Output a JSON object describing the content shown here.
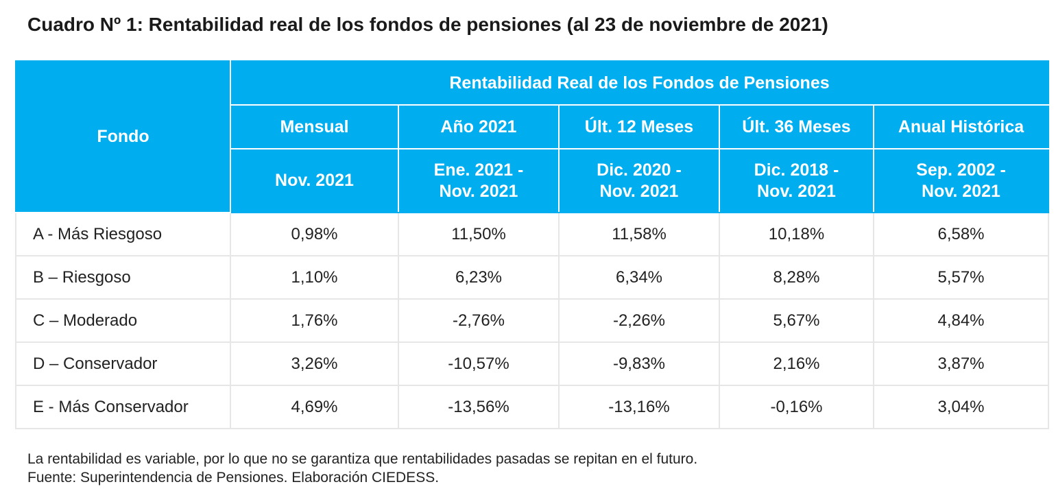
{
  "title": "Cuadro Nº 1: Rentabilidad real de los fondos de pensiones (al 23 de noviembre de 2021)",
  "chart_data": {
    "type": "table",
    "title": "Cuadro Nº 1: Rentabilidad real de los fondos de pensiones (al 23 de noviembre de 2021)",
    "header_color": "#00adef",
    "group_header": "Rentabilidad Real de los Fondos de Pensiones",
    "row_header": "Fondo",
    "columns": [
      {
        "label": "Mensual",
        "period": [
          "Nov. 2021"
        ]
      },
      {
        "label": "Año 2021",
        "period": [
          "Ene. 2021 -",
          "Nov. 2021"
        ]
      },
      {
        "label": "Últ. 12 Meses",
        "period": [
          "Dic. 2020 -",
          "Nov. 2021"
        ]
      },
      {
        "label": "Últ. 36 Meses",
        "period": [
          "Dic. 2018 -",
          "Nov. 2021"
        ]
      },
      {
        "label": "Anual Histórica",
        "period": [
          "Sep. 2002 -",
          "Nov. 2021"
        ]
      }
    ],
    "rows": [
      {
        "fondo": "A - Más Riesgoso",
        "values": [
          "0,98%",
          "11,50%",
          "11,58%",
          "10,18%",
          "6,58%"
        ]
      },
      {
        "fondo": "B – Riesgoso",
        "values": [
          "1,10%",
          "6,23%",
          "6,34%",
          "8,28%",
          "5,57%"
        ]
      },
      {
        "fondo": "C – Moderado",
        "values": [
          "1,76%",
          "-2,76%",
          "-2,26%",
          "5,67%",
          "4,84%"
        ]
      },
      {
        "fondo": "D – Conservador",
        "values": [
          "3,26%",
          "-10,57%",
          "-9,83%",
          "2,16%",
          "3,87%"
        ]
      },
      {
        "fondo": "E - Más Conservador",
        "values": [
          "4,69%",
          "-13,56%",
          "-13,16%",
          "-0,16%",
          "3,04%"
        ]
      }
    ]
  },
  "notes": {
    "disclaimer": "La rentabilidad es variable, por lo que no se garantiza que rentabilidades pasadas se repitan en el futuro.",
    "source": "Fuente: Superintendencia de Pensiones. Elaboración CIEDESS."
  }
}
